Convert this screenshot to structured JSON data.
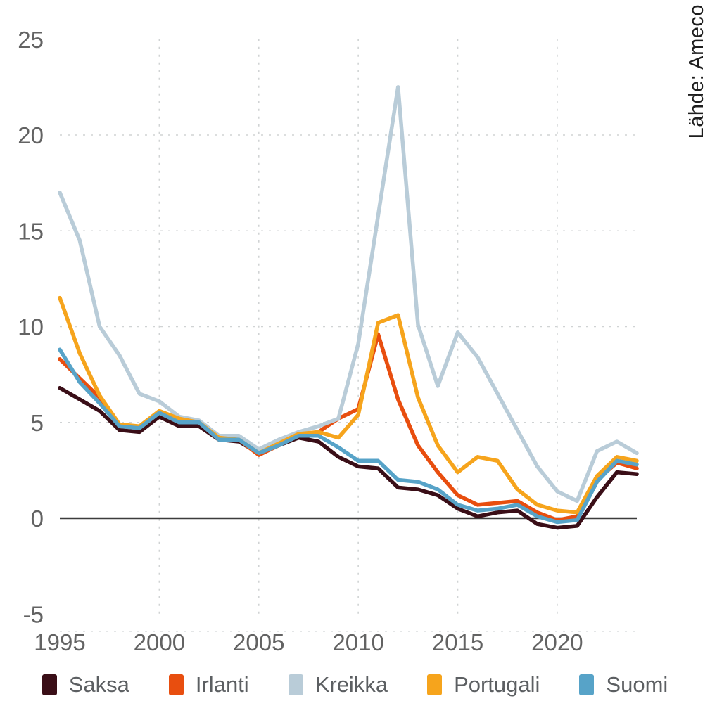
{
  "source_label": "Lähde: Ameco",
  "chart_data": {
    "type": "line",
    "title": "",
    "xlabel": "",
    "ylabel": "",
    "x": [
      1995,
      1996,
      1997,
      1998,
      1999,
      2000,
      2001,
      2002,
      2003,
      2004,
      2005,
      2006,
      2007,
      2008,
      2009,
      2010,
      2011,
      2012,
      2013,
      2014,
      2015,
      2016,
      2017,
      2018,
      2019,
      2020,
      2021,
      2022,
      2023,
      2024
    ],
    "series": [
      {
        "name": "Saksa",
        "color": "#3a0e17",
        "values": [
          6.8,
          6.2,
          5.6,
          4.6,
          4.5,
          5.3,
          4.8,
          4.8,
          4.1,
          4.0,
          3.4,
          3.8,
          4.2,
          4.0,
          3.2,
          2.7,
          2.6,
          1.6,
          1.5,
          1.2,
          0.5,
          0.1,
          0.3,
          0.4,
          -0.3,
          -0.5,
          -0.4,
          1.1,
          2.4,
          2.3
        ]
      },
      {
        "name": "Irlanti",
        "color": "#e84e0f",
        "values": [
          8.3,
          7.3,
          6.3,
          4.8,
          4.7,
          5.5,
          5.0,
          5.0,
          4.1,
          4.1,
          3.3,
          3.8,
          4.3,
          4.5,
          5.2,
          5.7,
          9.6,
          6.2,
          3.8,
          2.4,
          1.2,
          0.7,
          0.8,
          0.9,
          0.3,
          -0.1,
          0.1,
          2.0,
          2.9,
          2.6
        ]
      },
      {
        "name": "Kreikka",
        "color": "#b9ccd8",
        "values": [
          17.0,
          14.5,
          10.0,
          8.5,
          6.5,
          6.1,
          5.3,
          5.1,
          4.3,
          4.3,
          3.6,
          4.1,
          4.5,
          4.8,
          5.2,
          9.1,
          15.8,
          22.5,
          10.1,
          6.9,
          9.7,
          8.4,
          6.5,
          4.6,
          2.7,
          1.4,
          0.9,
          3.5,
          4.0,
          3.4
        ]
      },
      {
        "name": "Portugali",
        "color": "#f6a41c",
        "values": [
          11.5,
          8.6,
          6.4,
          4.9,
          4.8,
          5.6,
          5.2,
          5.0,
          4.2,
          4.1,
          3.4,
          3.9,
          4.4,
          4.5,
          4.2,
          5.4,
          10.2,
          10.6,
          6.3,
          3.8,
          2.4,
          3.2,
          3.0,
          1.5,
          0.7,
          0.4,
          0.3,
          2.2,
          3.2,
          3.0
        ]
      },
      {
        "name": "Suomi",
        "color": "#57a3c8",
        "values": [
          8.8,
          7.1,
          6.0,
          4.8,
          4.7,
          5.5,
          5.0,
          5.0,
          4.1,
          4.1,
          3.4,
          3.8,
          4.3,
          4.3,
          3.7,
          3.0,
          3.0,
          2.0,
          1.9,
          1.5,
          0.7,
          0.4,
          0.5,
          0.7,
          0.1,
          -0.2,
          -0.1,
          1.9,
          3.0,
          2.8
        ]
      }
    ],
    "x_ticks": [
      1995,
      2000,
      2005,
      2010,
      2015,
      2020
    ],
    "y_ticks": [
      25,
      20,
      15,
      10,
      5,
      0,
      -5
    ],
    "xlim": [
      1995,
      2024
    ],
    "ylim": [
      -5,
      25
    ],
    "grid": {
      "horizontal_at": [
        20,
        15,
        10,
        5
      ],
      "vertical_at": [
        2000,
        2005,
        2010,
        2015,
        2020
      ],
      "zero_line": true,
      "grid_color": "#d0d3d4",
      "zero_line_color": "#3c3c3c"
    },
    "legend_position": "bottom"
  }
}
